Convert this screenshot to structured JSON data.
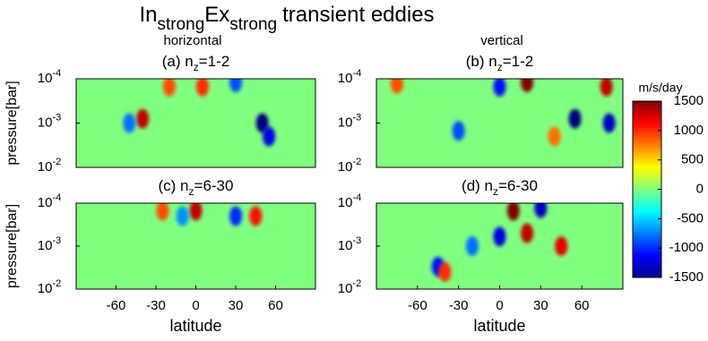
{
  "chart_data": {
    "type": "contour",
    "title": [
      "In",
      "strong",
      "Ex",
      "strong",
      "transient eddies"
    ],
    "column_titles": [
      "horizontal",
      "vertical"
    ],
    "ylabel": "pressure[bar]",
    "xlabel": "latitude",
    "xlim": [
      -90,
      90
    ],
    "xticks": [
      -60,
      -30,
      0,
      30,
      60
    ],
    "ylim": [
      0.01,
      0.0001
    ],
    "log_y": true,
    "yticks": [
      {
        "value": 0.0001,
        "label": "10",
        "exponent": "-4"
      },
      {
        "value": 0.001,
        "label": "10",
        "exponent": "-3"
      },
      {
        "value": 0.01,
        "label": "10",
        "exponent": "-2"
      }
    ],
    "colormap": "jet",
    "colorbar": {
      "label": "m/s/day",
      "lim": [
        -1500,
        1500
      ],
      "ticks": [
        1500,
        1000,
        500,
        0,
        -500,
        -1000,
        -1500
      ]
    },
    "panels": [
      {
        "title": [
          "(a) n",
          "z",
          "=1-2"
        ],
        "features": [
          {
            "lat": 50,
            "pressure": 0.001,
            "value": -1500
          },
          {
            "lat": 55,
            "pressure": 0.002,
            "value": -1200
          },
          {
            "lat": -40,
            "pressure": 0.0008,
            "value": 1300
          },
          {
            "lat": -50,
            "pressure": 0.001,
            "value": -800
          },
          {
            "lat": -20,
            "pressure": 0.00015,
            "value": 900
          },
          {
            "lat": 30,
            "pressure": 0.00012,
            "value": -900
          },
          {
            "lat": 5,
            "pressure": 0.00015,
            "value": 1000
          }
        ]
      },
      {
        "title": [
          "(b) n",
          "z",
          "=1-2"
        ],
        "features": [
          {
            "lat": 55,
            "pressure": 0.0008,
            "value": -1500
          },
          {
            "lat": 78,
            "pressure": 0.00015,
            "value": 1300
          },
          {
            "lat": 80,
            "pressure": 0.001,
            "value": -1300
          },
          {
            "lat": 20,
            "pressure": 0.00012,
            "value": 1500
          },
          {
            "lat": 0,
            "pressure": 0.00015,
            "value": -1100
          },
          {
            "lat": -30,
            "pressure": 0.0015,
            "value": -900
          },
          {
            "lat": -75,
            "pressure": 0.00013,
            "value": 900
          },
          {
            "lat": 40,
            "pressure": 0.002,
            "value": 800
          }
        ]
      },
      {
        "title": [
          "(c) n",
          "z",
          "=6-30"
        ],
        "features": [
          {
            "lat": 0,
            "pressure": 0.00015,
            "value": 1300
          },
          {
            "lat": 30,
            "pressure": 0.0002,
            "value": -1000
          },
          {
            "lat": 45,
            "pressure": 0.0002,
            "value": 1100
          },
          {
            "lat": -25,
            "pressure": 0.00015,
            "value": 900
          },
          {
            "lat": -10,
            "pressure": 0.0002,
            "value": -700
          }
        ]
      },
      {
        "title": [
          "(d) n",
          "z",
          "=6-30"
        ],
        "features": [
          {
            "lat": 10,
            "pressure": 0.00015,
            "value": 1500
          },
          {
            "lat": 30,
            "pressure": 0.00013,
            "value": -1300
          },
          {
            "lat": 0,
            "pressure": 0.0006,
            "value": -1200
          },
          {
            "lat": 45,
            "pressure": 0.001,
            "value": 1200
          },
          {
            "lat": -45,
            "pressure": 0.003,
            "value": -1100
          },
          {
            "lat": -40,
            "pressure": 0.004,
            "value": 1000
          },
          {
            "lat": 20,
            "pressure": 0.0005,
            "value": 1300
          },
          {
            "lat": -20,
            "pressure": 0.001,
            "value": -800
          }
        ]
      }
    ]
  }
}
